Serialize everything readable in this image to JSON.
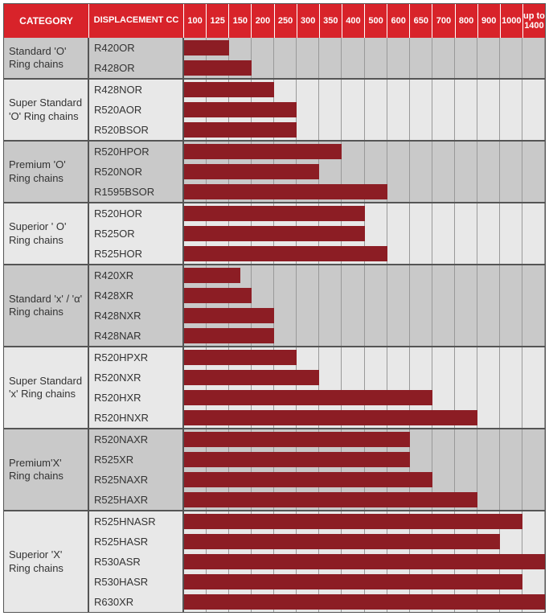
{
  "header": {
    "category_label": "CATEGORY",
    "displacement_label": "DISPLACEMENT CC",
    "columns": [
      "100",
      "125",
      "150",
      "200",
      "250",
      "300",
      "350",
      "400",
      "500",
      "600",
      "650",
      "700",
      "800",
      "900",
      "1000",
      "up to 1400"
    ]
  },
  "colors": {
    "header_bg": "#d8232a",
    "bar_fill": "#8c1d24",
    "row_light": "#e8e8e8",
    "row_dark": "#c9c9c9",
    "grid_line": "#999999",
    "group_border": "#555555"
  },
  "n_cols": 16,
  "groups": [
    {
      "category": "Standard 'O' Ring chains",
      "bg": "dark",
      "rows": [
        {
          "label": "R420OR",
          "bar_cols": 2
        },
        {
          "label": "R428OR",
          "bar_cols": 3
        }
      ]
    },
    {
      "category": "Super Standard 'O' Ring chains",
      "bg": "light",
      "rows": [
        {
          "label": "R428NOR",
          "bar_cols": 4
        },
        {
          "label": "R520AOR",
          "bar_cols": 5
        },
        {
          "label": "R520BSOR",
          "bar_cols": 5
        }
      ]
    },
    {
      "category": "Premium 'O' Ring chains",
      "bg": "dark",
      "rows": [
        {
          "label": "R520HPOR",
          "bar_cols": 7
        },
        {
          "label": "R520NOR",
          "bar_cols": 6
        },
        {
          "label": "R1595BSOR",
          "bar_cols": 9
        }
      ]
    },
    {
      "category": "Superior ' O' Ring chains",
      "bg": "light",
      "rows": [
        {
          "label": "R520HOR",
          "bar_cols": 8
        },
        {
          "label": "R525OR",
          "bar_cols": 8
        },
        {
          "label": "R525HOR",
          "bar_cols": 9
        }
      ]
    },
    {
      "category": "Standard 'x' / 'α' Ring chains",
      "bg": "dark",
      "rows": [
        {
          "label": "R420XR",
          "bar_cols": 2.5
        },
        {
          "label": "R428XR",
          "bar_cols": 3
        },
        {
          "label": "R428NXR",
          "bar_cols": 4
        },
        {
          "label": "R428NAR",
          "bar_cols": 4
        }
      ]
    },
    {
      "category": "Super Standard 'x' Ring chains",
      "bg": "light",
      "rows": [
        {
          "label": "R520HPXR",
          "bar_cols": 5
        },
        {
          "label": "R520NXR",
          "bar_cols": 6
        },
        {
          "label": "R520HXR",
          "bar_cols": 11
        },
        {
          "label": "R520HNXR",
          "bar_cols": 13
        }
      ]
    },
    {
      "category": "Premium'X' Ring chains",
      "bg": "dark",
      "rows": [
        {
          "label": "R520NAXR",
          "bar_cols": 10
        },
        {
          "label": "R525XR",
          "bar_cols": 10
        },
        {
          "label": "R525NAXR",
          "bar_cols": 11
        },
        {
          "label": "R525HAXR",
          "bar_cols": 13
        }
      ]
    },
    {
      "category": "Superior 'X' Ring chains",
      "bg": "light",
      "rows": [
        {
          "label": "R525HNASR",
          "bar_cols": 15
        },
        {
          "label": "R525HASR",
          "bar_cols": 14
        },
        {
          "label": "R530ASR",
          "bar_cols": 16
        },
        {
          "label": "R530HASR",
          "bar_cols": 15
        },
        {
          "label": "R630XR",
          "bar_cols": 16
        }
      ]
    }
  ]
}
